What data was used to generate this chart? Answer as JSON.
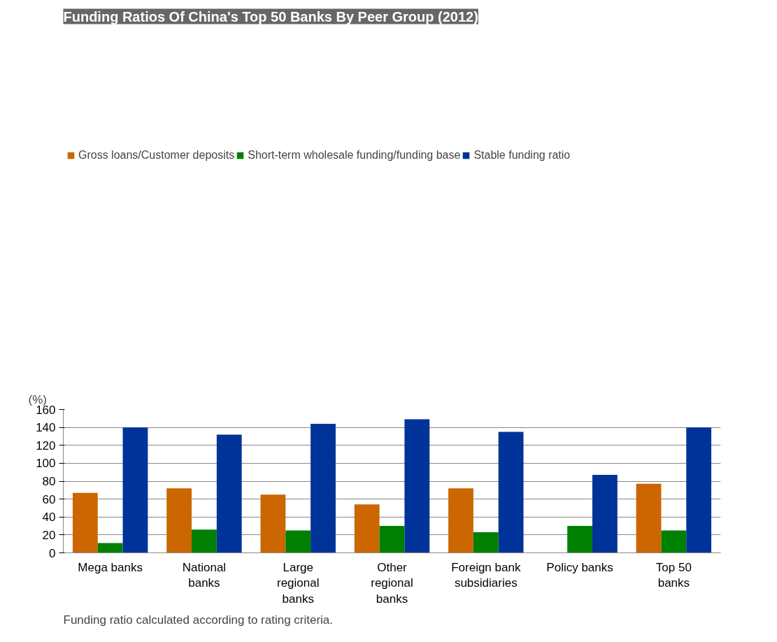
{
  "chart_data": {
    "type": "bar",
    "title": "Funding Ratios Of China's Top 50 Banks By Peer Group (2012)",
    "ylabel": "(%)",
    "categories": [
      "Mega banks",
      "National\nbanks",
      "Large\nregional\nbanks",
      "Other\nregional\nbanks",
      "Foreign bank\nsubsidiaries",
      "Policy banks",
      "Top 50\nbanks"
    ],
    "series": [
      {
        "name": "Gross loans/Customer deposits",
        "color": "#cc6600",
        "values": [
          67,
          72,
          65,
          54,
          72,
          null,
          77
        ]
      },
      {
        "name": "Short-term wholesale funding/funding base",
        "color": "#008000",
        "values": [
          11,
          26,
          25,
          30,
          23,
          30,
          25
        ]
      },
      {
        "name": "Stable funding ratio",
        "color": "#003399",
        "values": [
          140,
          132,
          144,
          149,
          135,
          87,
          140
        ]
      }
    ],
    "ylim": [
      0,
      160
    ],
    "yticks": [
      0,
      20,
      40,
      60,
      80,
      100,
      120,
      140,
      160
    ],
    "grid": "y",
    "legend": "top",
    "annotations": [
      "Funding ratio calculated according to rating criteria."
    ]
  }
}
